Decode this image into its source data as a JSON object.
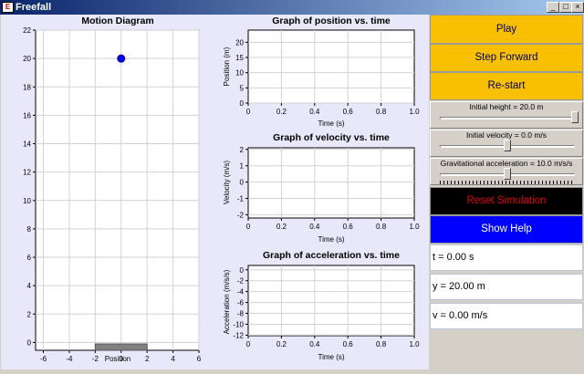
{
  "window": {
    "title": "Freefall",
    "icon": "ejs-app-icon",
    "controls": [
      "minimize",
      "maximize",
      "close"
    ]
  },
  "motion_diagram": {
    "title": "Motion Diagram",
    "xlabel": "Position",
    "x_ticks": [
      "-6",
      "-4",
      "-2",
      "0",
      "2",
      "4",
      "6"
    ],
    "y_ticks": [
      "0",
      "2",
      "4",
      "6",
      "8",
      "10",
      "12",
      "14",
      "16",
      "18",
      "20",
      "22"
    ],
    "ball": {
      "x": 0,
      "y": 20,
      "color": "#0000ff"
    },
    "ground": {
      "x_from": -2,
      "x_to": 2,
      "color": "#808080"
    }
  },
  "position_graph": {
    "title": "Graph of position vs. time",
    "xlabel": "Time (s)",
    "ylabel": "Position (m)",
    "x_ticks": [
      "0",
      "0.2",
      "0.4",
      "0.6",
      "0.8",
      "1.0"
    ],
    "y_ticks": [
      "0",
      "5",
      "10",
      "15",
      "20"
    ]
  },
  "velocity_graph": {
    "title": "Graph of velocity vs. time",
    "xlabel": "Time (s)",
    "ylabel": "Velocity (m/s)",
    "x_ticks": [
      "0",
      "0.2",
      "0.4",
      "0.6",
      "0.8",
      "1.0"
    ],
    "y_ticks": [
      "2",
      "1",
      "0",
      "-1",
      "-2"
    ]
  },
  "acceleration_graph": {
    "title": "Graph of acceleration vs. time",
    "xlabel": "Time (s)",
    "ylabel": "Acceleration (m/s/s)",
    "x_ticks": [
      "0",
      "0.2",
      "0.4",
      "0.6",
      "0.8",
      "1.0"
    ],
    "y_ticks": [
      "0",
      "-2",
      "-4",
      "-6",
      "-8",
      "-10",
      "-12"
    ]
  },
  "controls": {
    "play": "Play",
    "step": "Step Forward",
    "restart": "Re-start",
    "reset": "Reset Simulation",
    "help": "Show Help"
  },
  "sliders": {
    "height": {
      "label": "Initial height = 20.0 m",
      "value": 20.0,
      "min": 0,
      "max": 20
    },
    "velocity": {
      "label": "Initial velocity = 0.0 m/s",
      "value": 0.0,
      "min": -20,
      "max": 20
    },
    "gravity": {
      "label": "Gravitational acceleration = 10.0 m/s/s",
      "value": 10.0,
      "min": 0,
      "max": 20
    }
  },
  "readouts": {
    "t": "t = 0.00 s",
    "y": "y = 20.00 m",
    "v": "v = 0.00 m/s"
  },
  "colors": {
    "play_bg": "#f8c000",
    "reset_bg": "#000000",
    "reset_text": "#e00000",
    "help_bg": "#0000ff"
  }
}
